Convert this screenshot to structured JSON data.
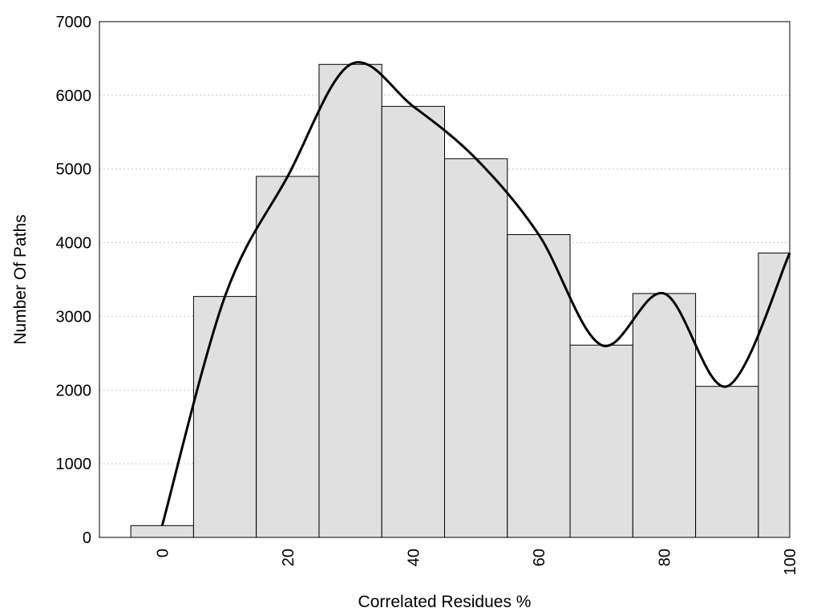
{
  "chart_data": {
    "type": "bar",
    "title": "",
    "xlabel": "Correlated Residues %",
    "ylabel": "Number Of Paths",
    "x": [
      0,
      10,
      20,
      30,
      40,
      50,
      60,
      70,
      80,
      90,
      100
    ],
    "values": [
      160,
      3270,
      4900,
      6420,
      5850,
      5140,
      4110,
      2610,
      3310,
      2050,
      3860
    ],
    "bin_width": 10,
    "xlim": [
      -10,
      100
    ],
    "ylim": [
      0,
      7000
    ],
    "x_ticks": [
      0,
      20,
      40,
      60,
      80,
      100
    ],
    "y_ticks": [
      0,
      1000,
      2000,
      3000,
      4000,
      5000,
      6000,
      7000
    ],
    "x_tick_rotation": "vertical",
    "smooth_curve": true,
    "grid": "horizontal dotted",
    "legend": "none",
    "colors": {
      "bar_fill": "#e0e0e0",
      "bar_edge": "#000000",
      "curve": "#000000"
    }
  }
}
